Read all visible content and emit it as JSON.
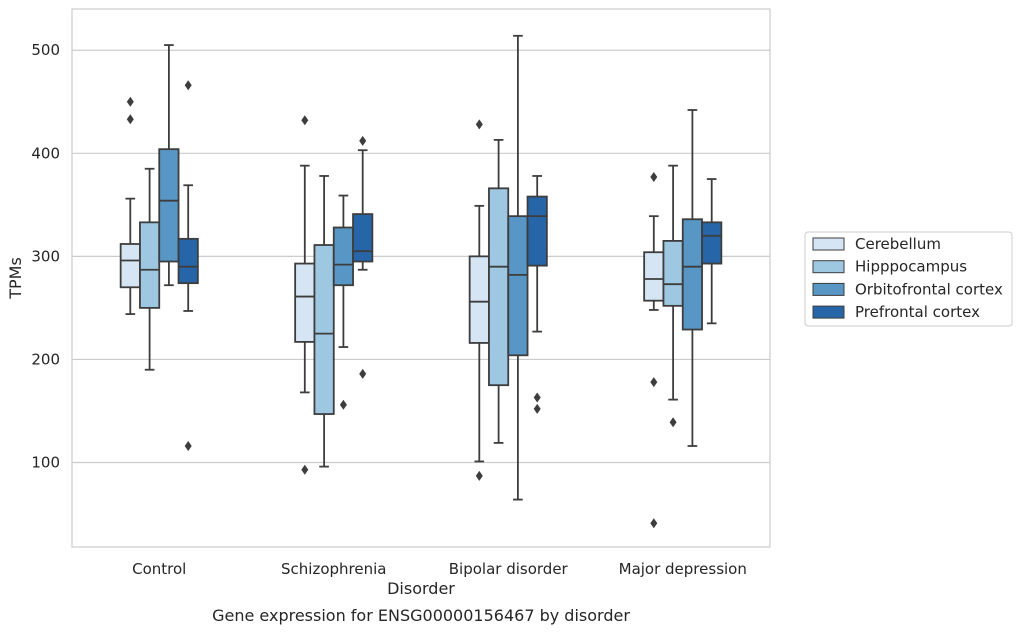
{
  "chart_data": {
    "type": "box",
    "caption": "Gene expression for ENSG00000156467 by disorder",
    "xlabel": "Disorder",
    "ylabel": "TPMs",
    "ylim": [
      18,
      540
    ],
    "yticks": [
      100,
      200,
      300,
      400,
      500
    ],
    "grid": "horizontal",
    "legend_position": "right",
    "categories": [
      "Control",
      "Schizophrenia",
      "Bipolar disorder",
      "Major depression"
    ],
    "series": [
      {
        "name": "Cerebellum",
        "color": "#d6e5f4",
        "boxes": [
          {
            "whisker_low": 244,
            "q1": 270,
            "median": 296,
            "q3": 312,
            "whisker_high": 356,
            "outliers": [
              433,
              450
            ]
          },
          {
            "whisker_low": 168,
            "q1": 217,
            "median": 261,
            "q3": 293,
            "whisker_high": 388,
            "outliers": [
              93,
              432
            ]
          },
          {
            "whisker_low": 101,
            "q1": 216,
            "median": 256,
            "q3": 300,
            "whisker_high": 349,
            "outliers": [
              87,
              428
            ]
          },
          {
            "whisker_low": 248,
            "q1": 257,
            "median": 278,
            "q3": 304,
            "whisker_high": 339,
            "outliers": [
              41,
              178,
              377
            ]
          }
        ]
      },
      {
        "name": "Hipppocampus",
        "color": "#9ec8e1",
        "boxes": [
          {
            "whisker_low": 190,
            "q1": 250,
            "median": 287,
            "q3": 333,
            "whisker_high": 385,
            "outliers": []
          },
          {
            "whisker_low": 96,
            "q1": 147,
            "median": 225,
            "q3": 311,
            "whisker_high": 378,
            "outliers": []
          },
          {
            "whisker_low": 119,
            "q1": 175,
            "median": 290,
            "q3": 366,
            "whisker_high": 413,
            "outliers": []
          },
          {
            "whisker_low": 161,
            "q1": 252,
            "median": 273,
            "q3": 315,
            "whisker_high": 388,
            "outliers": [
              139
            ]
          }
        ]
      },
      {
        "name": "Orbitofrontal cortex",
        "color": "#5896c5",
        "boxes": [
          {
            "whisker_low": 272,
            "q1": 295,
            "median": 354,
            "q3": 404,
            "whisker_high": 505,
            "outliers": []
          },
          {
            "whisker_low": 212,
            "q1": 272,
            "median": 292,
            "q3": 328,
            "whisker_high": 359,
            "outliers": [
              156
            ]
          },
          {
            "whisker_low": 64,
            "q1": 204,
            "median": 282,
            "q3": 339,
            "whisker_high": 514,
            "outliers": []
          },
          {
            "whisker_low": 116,
            "q1": 229,
            "median": 290,
            "q3": 336,
            "whisker_high": 442,
            "outliers": []
          }
        ]
      },
      {
        "name": "Prefrontal cortex",
        "color": "#2765a9",
        "boxes": [
          {
            "whisker_low": 247,
            "q1": 274,
            "median": 290,
            "q3": 317,
            "whisker_high": 369,
            "outliers": [
              116,
              466
            ]
          },
          {
            "whisker_low": 287,
            "q1": 295,
            "median": 305,
            "q3": 341,
            "whisker_high": 403,
            "outliers": [
              186,
              412
            ]
          },
          {
            "whisker_low": 227,
            "q1": 291,
            "median": 339,
            "q3": 358,
            "whisker_high": 378,
            "outliers": [
              152,
              163
            ]
          },
          {
            "whisker_low": 235,
            "q1": 293,
            "median": 320,
            "q3": 333,
            "whisker_high": 375,
            "outliers": []
          }
        ]
      }
    ]
  }
}
